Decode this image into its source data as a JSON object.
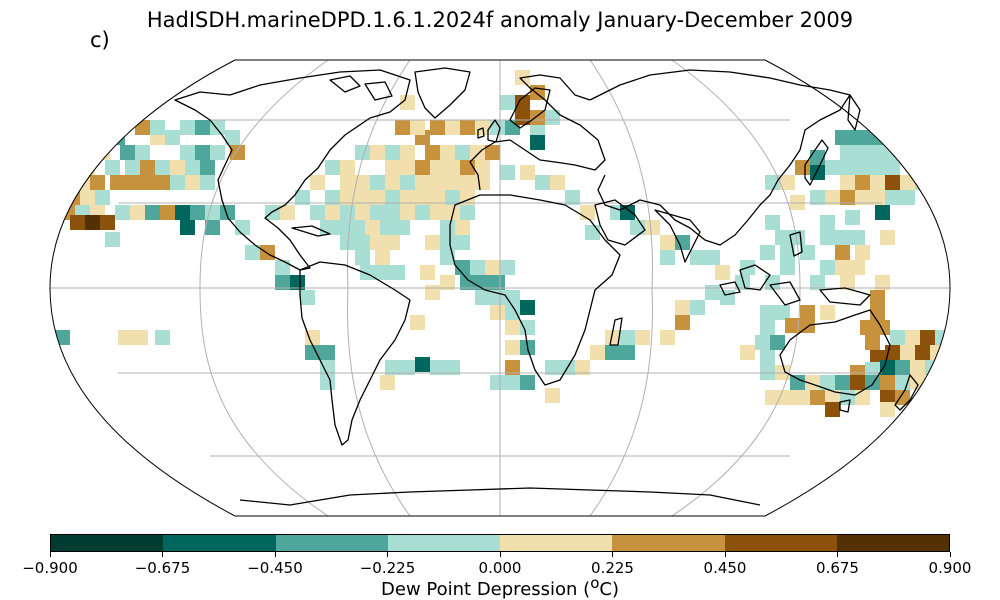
{
  "title": "HadISDH.marineDPD.1.6.1.2024f anomaly January-December 2009",
  "panel_label": "c)",
  "colorbar": {
    "label": "Dew Point Depression (",
    "label_sup": "o",
    "label_end": "C)",
    "tick_labels": [
      "−0.900",
      "−0.675",
      "−0.450",
      "−0.225",
      "0.000",
      "0.225",
      "0.450",
      "0.675",
      "0.900"
    ],
    "colors": [
      "#003c30",
      "#01665e",
      "#4fa79c",
      "#a9ded5",
      "#f1dfad",
      "#c7923e",
      "#8c510a",
      "#543005"
    ]
  },
  "map": {
    "projection": "robinson",
    "background": "#ffffff",
    "coastline_color": "#000000",
    "grid_color": "#b0b0b0"
  }
}
